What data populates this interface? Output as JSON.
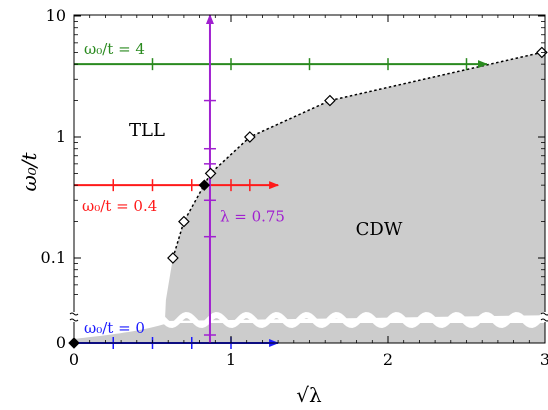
{
  "chart_data": {
    "type": "scatter",
    "title": "",
    "xlabel": "√λ",
    "ylabel": "ω₀/t",
    "xlim": [
      0,
      3
    ],
    "x_ticks": [
      "0",
      "1",
      "2",
      "3"
    ],
    "y_ticks": [
      "0",
      "0.1",
      "1",
      "10"
    ],
    "y_scale": "log with broken axis; ω₀/t = 0 shown separately below the break",
    "grid": false,
    "regions": [
      "TLL",
      "CDW"
    ],
    "region_colors": {
      "TLL": "#ffffff",
      "CDW": "#cccccc"
    },
    "phase_boundary": {
      "name": "",
      "marker": "diamond",
      "color": "#000000",
      "points": [
        {
          "x": 0.63,
          "y": 0.1
        },
        {
          "x": 0.7,
          "y": 0.2
        },
        {
          "x": 0.87,
          "y": 0.5
        },
        {
          "x": 1.12,
          "y": 1.0
        },
        {
          "x": 1.63,
          "y": 2.0
        },
        {
          "x": 2.98,
          "y": 5.0
        }
      ]
    },
    "filled_points": [
      {
        "x": 0.0,
        "y": 0.0
      },
      {
        "x": 0.83,
        "y": 0.4
      }
    ],
    "cuts": [
      {
        "label": "ω₀/t = 4",
        "color": "#2a8a1f",
        "direction": "horizontal",
        "y": 4,
        "x_range": [
          0,
          2.63
        ],
        "ticks": [
          0.5,
          1.0,
          1.5,
          2.0,
          2.5
        ]
      },
      {
        "label": "ω₀/t = 0.4",
        "color": "#ff1a1a",
        "direction": "horizontal",
        "y": 0.4,
        "x_range": [
          0,
          1.3
        ],
        "ticks": [
          0.25,
          0.5,
          0.75,
          1.0,
          1.12
        ]
      },
      {
        "label": "ω₀/t = 0",
        "color": "#1a1aff",
        "direction": "horizontal",
        "y": 0,
        "x_range": [
          0,
          1.3
        ],
        "ticks": [
          0.25,
          0.5,
          0.75,
          1.0
        ]
      },
      {
        "label": "λ = 0.75",
        "color": "#a020d0",
        "direction": "vertical",
        "x": 0.866,
        "y_range": [
          0,
          10
        ],
        "ticks": [
          0.15,
          0.3,
          0.6,
          0.8,
          2.0
        ]
      }
    ]
  }
}
